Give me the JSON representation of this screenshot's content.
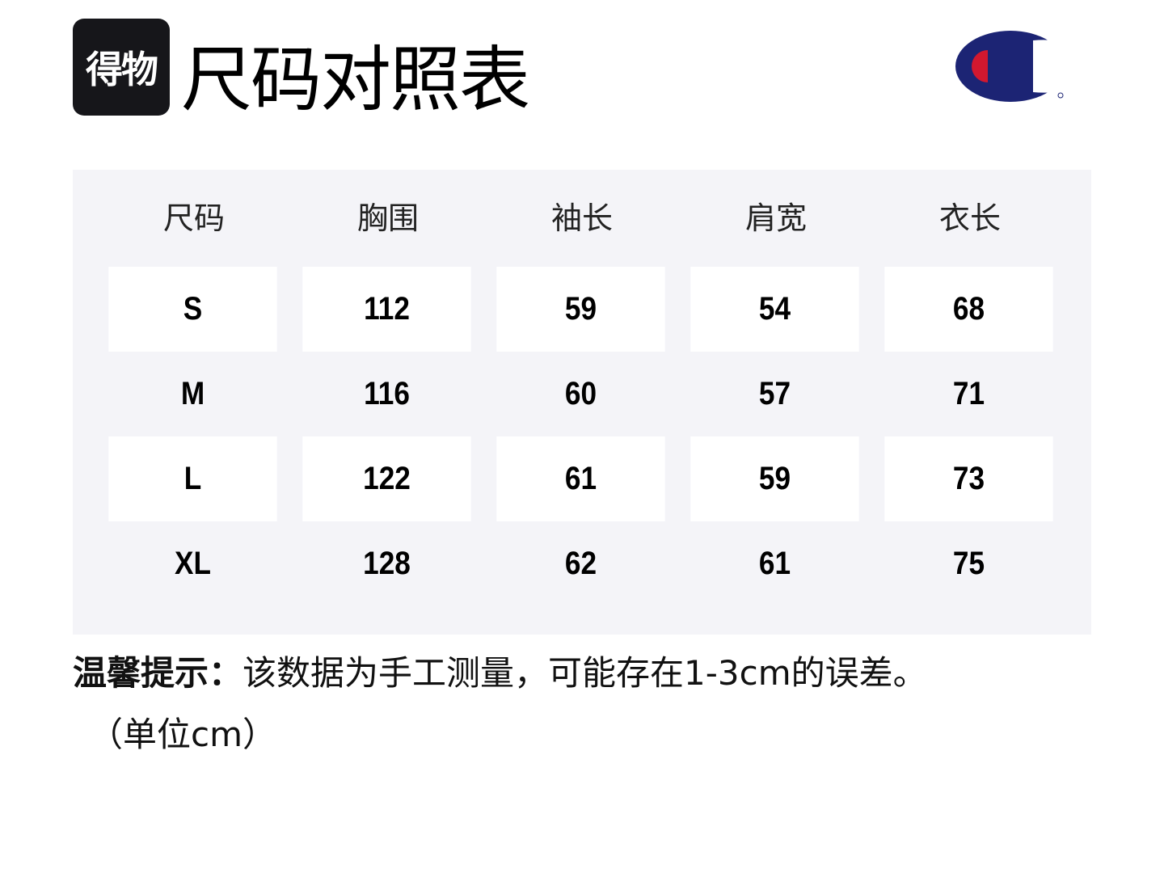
{
  "brand": {
    "badge_text": "得物"
  },
  "header": {
    "title": "尺码对照表"
  },
  "logo": {
    "name": "champion-logo",
    "colors": {
      "navy": "#1c2474",
      "red": "#d2182f"
    }
  },
  "table": {
    "columns": [
      "尺码",
      "胸围",
      "袖长",
      "肩宽",
      "衣长"
    ],
    "rows": [
      [
        "S",
        "112",
        "59",
        "54",
        "68"
      ],
      [
        "M",
        "116",
        "60",
        "57",
        "71"
      ],
      [
        "L",
        "122",
        "61",
        "59",
        "73"
      ],
      [
        "XL",
        "128",
        "62",
        "61",
        "75"
      ]
    ],
    "colors": {
      "background": "#f4f4f8",
      "row_alt": "#ffffff"
    }
  },
  "note": {
    "label": "温馨提示：",
    "text": "该数据为手工测量，可能存在1-3cm的误差。",
    "unit": "（单位cm）"
  }
}
